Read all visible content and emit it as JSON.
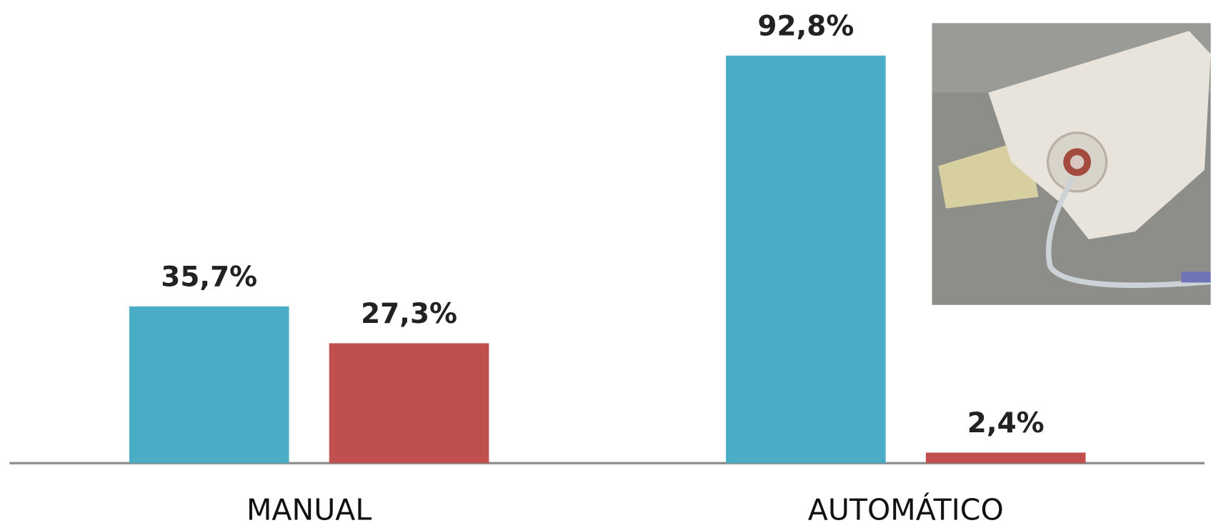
{
  "chart_data": {
    "type": "bar",
    "categories": [
      "MANUAL",
      "AUTOMÁTICO"
    ],
    "series": [
      {
        "color": "#4bacc6",
        "values": [
          35.7,
          92.8
        ],
        "value_labels": [
          "35,7%",
          "92,8%"
        ]
      },
      {
        "color": "#c0504d",
        "values": [
          27.3,
          2.4
        ],
        "value_labels": [
          "27,3%",
          "2,4%"
        ]
      }
    ]
  }
}
